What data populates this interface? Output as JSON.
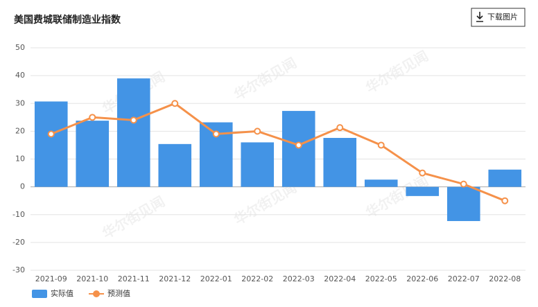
{
  "chart_data": {
    "type": "bar_line",
    "title": "美国费城联储制造业指数",
    "button": "下载图片",
    "watermark": "华尔街见闻",
    "categories": [
      "2021-09",
      "2021-10",
      "2021-11",
      "2021-12",
      "2022-01",
      "2022-02",
      "2022-03",
      "2022-04",
      "2022-05",
      "2022-06",
      "2022-07",
      "2022-08"
    ],
    "series": [
      {
        "name": "实际值",
        "type": "bar",
        "color": "#4394e5",
        "values": [
          30.7,
          23.8,
          39.0,
          15.4,
          23.2,
          16.0,
          27.3,
          17.6,
          2.6,
          -3.3,
          -12.3,
          6.2
        ]
      },
      {
        "name": "预测值",
        "type": "line",
        "color": "#f5914a",
        "values": [
          19,
          25,
          24,
          30,
          19,
          20,
          15,
          21.3,
          15,
          5,
          1,
          -5
        ]
      }
    ],
    "ylim": [
      -30,
      50
    ],
    "yticks": [
      50,
      40,
      30,
      20,
      10,
      0,
      -10,
      -20,
      -30
    ],
    "grid": true
  }
}
